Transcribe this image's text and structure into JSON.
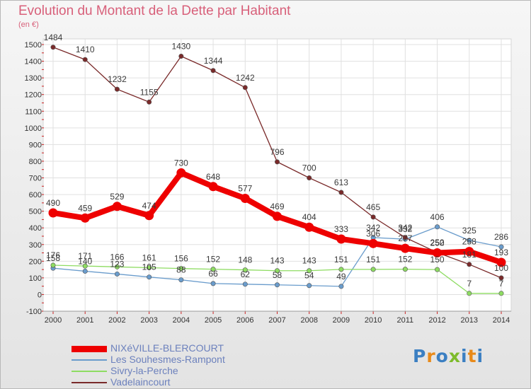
{
  "title": "Evolution du Montant de la Dette par Habitant",
  "unit_label": "(en €)",
  "logo": {
    "text": "Proxiti",
    "colors": [
      "#3b7fc2",
      "#e88a1a",
      "#3b7fc2",
      "#7dbb2b",
      "#3b7fc2",
      "#e88a1a",
      "#3b7fc2"
    ]
  },
  "chart_data": {
    "type": "line",
    "title": "Evolution du Montant de la Dette par Habitant",
    "ylabel": "(en €)",
    "x": [
      "2000",
      "2001",
      "2002",
      "2003",
      "2004",
      "2005",
      "2006",
      "2007",
      "2008",
      "2009",
      "2010",
      "2011",
      "2012",
      "2013",
      "2014"
    ],
    "ylim": [
      -100,
      1500
    ],
    "yticks": [
      -100,
      0,
      100,
      200,
      300,
      400,
      500,
      600,
      700,
      800,
      900,
      1000,
      1100,
      1200,
      1300,
      1400,
      1500
    ],
    "grid": true,
    "legend_position": "bottom-left",
    "series": [
      {
        "name": "NIXéVILLE-BLERCOURT",
        "color": "#ee0000",
        "emphasis": true,
        "values": [
          490,
          459,
          529,
          474,
          730,
          648,
          577,
          469,
          404,
          333,
          306,
          277,
          250,
          258,
          193
        ]
      },
      {
        "name": "Les Souhesmes-Rampont",
        "color": "#6a9ccc",
        "values": [
          158,
          140,
          123,
          105,
          88,
          66,
          62,
          58,
          54,
          49,
          342,
          332,
          406,
          325,
          286
        ]
      },
      {
        "name": "Sivry-la-Perche",
        "color": "#8edc62",
        "values": [
          176,
          171,
          166,
          161,
          156,
          152,
          148,
          143,
          143,
          151,
          151,
          152,
          150,
          7,
          7
        ]
      },
      {
        "name": "Vadelaincourt",
        "color": "#7a2a2a",
        "values": [
          1484,
          1410,
          1232,
          1155,
          1430,
          1344,
          1242,
          796,
          700,
          613,
          465,
          342,
          252,
          181,
          100
        ]
      }
    ]
  }
}
